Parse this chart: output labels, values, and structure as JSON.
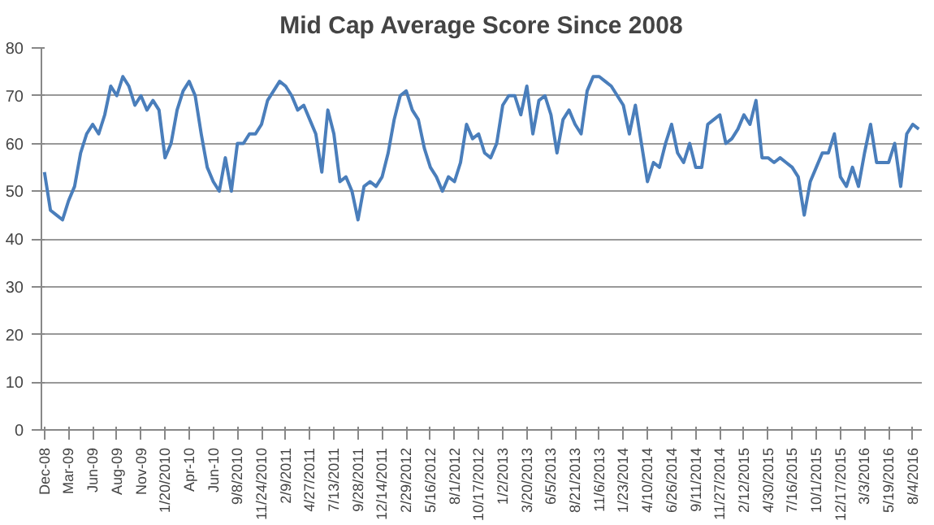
{
  "chart_data": {
    "type": "line",
    "title": "Mid Cap Average Score Since 2008",
    "categories": [
      "Dec-08",
      null,
      null,
      null,
      "Mar-09",
      null,
      null,
      null,
      "Jun-09",
      null,
      null,
      null,
      "Aug-09",
      null,
      null,
      null,
      "Nov-09",
      null,
      null,
      null,
      "1/20/2010",
      null,
      null,
      null,
      "Apr-10",
      null,
      null,
      null,
      "Jun-10",
      null,
      null,
      null,
      "9/8/2010",
      null,
      null,
      null,
      "11/24/2010",
      null,
      null,
      null,
      "2/9/2011",
      null,
      null,
      null,
      "4/27/2011",
      null,
      null,
      null,
      "7/13/2011",
      null,
      null,
      null,
      "9/28/2011",
      null,
      null,
      null,
      "12/14/2011",
      null,
      null,
      null,
      "2/29/2012",
      null,
      null,
      null,
      "5/16/2012",
      null,
      null,
      null,
      "8/1/2012",
      null,
      null,
      null,
      "10/17/2012",
      null,
      null,
      null,
      "1/2/2013",
      null,
      null,
      null,
      "3/20/2013",
      null,
      null,
      null,
      "6/5/2013",
      null,
      null,
      null,
      "8/21/2013",
      null,
      null,
      null,
      "11/6/2013",
      null,
      null,
      null,
      "1/23/2014",
      null,
      null,
      null,
      "4/10/2014",
      null,
      null,
      null,
      "6/26/2014",
      null,
      null,
      null,
      "9/11/2014",
      null,
      null,
      null,
      "11/27/2014",
      null,
      null,
      null,
      "2/12/2015",
      null,
      null,
      null,
      "4/30/2015",
      null,
      null,
      null,
      "7/16/2015",
      null,
      null,
      null,
      "10/1/2015",
      null,
      null,
      null,
      "12/17/2015",
      null,
      null,
      null,
      "3/3/2016",
      null,
      null,
      null,
      "5/19/2016",
      null,
      null,
      null,
      "8/4/2016",
      null
    ],
    "series": [
      {
        "color": "#4a7ebb",
        "values": [
          54,
          46,
          45,
          44,
          48,
          51,
          58,
          62,
          64,
          62,
          66,
          72,
          70,
          74,
          72,
          68,
          70,
          67,
          69,
          67,
          57,
          60,
          67,
          71,
          73,
          70,
          62,
          55,
          52,
          50,
          57,
          50,
          60,
          60,
          62,
          62,
          64,
          69,
          71,
          73,
          72,
          70,
          67,
          68,
          65,
          62,
          54,
          67,
          62,
          52,
          53,
          50,
          44,
          51,
          52,
          51,
          53,
          58,
          65,
          70,
          71,
          67,
          65,
          59,
          55,
          53,
          50,
          53,
          52,
          56,
          64,
          61,
          62,
          58,
          57,
          60,
          68,
          70,
          70,
          66,
          72,
          62,
          69,
          70,
          66,
          58,
          65,
          67,
          64,
          62,
          71,
          74,
          74,
          73,
          72,
          70,
          68,
          62,
          68,
          60,
          52,
          56,
          55,
          60,
          64,
          58,
          56,
          60,
          55,
          55,
          64,
          65,
          66,
          60,
          61,
          63,
          66,
          64,
          69,
          57,
          57,
          56,
          57,
          56,
          55,
          53,
          45,
          52,
          55,
          58,
          58,
          62,
          53,
          51,
          55,
          51,
          58,
          64,
          56,
          56,
          56,
          60,
          51,
          62,
          64,
          63
        ]
      }
    ],
    "ylim": [
      0,
      80
    ],
    "yticks": [
      0,
      10,
      20,
      30,
      40,
      50,
      60,
      70,
      80
    ],
    "grid": "y",
    "line_style": "solid",
    "marker": "none"
  }
}
